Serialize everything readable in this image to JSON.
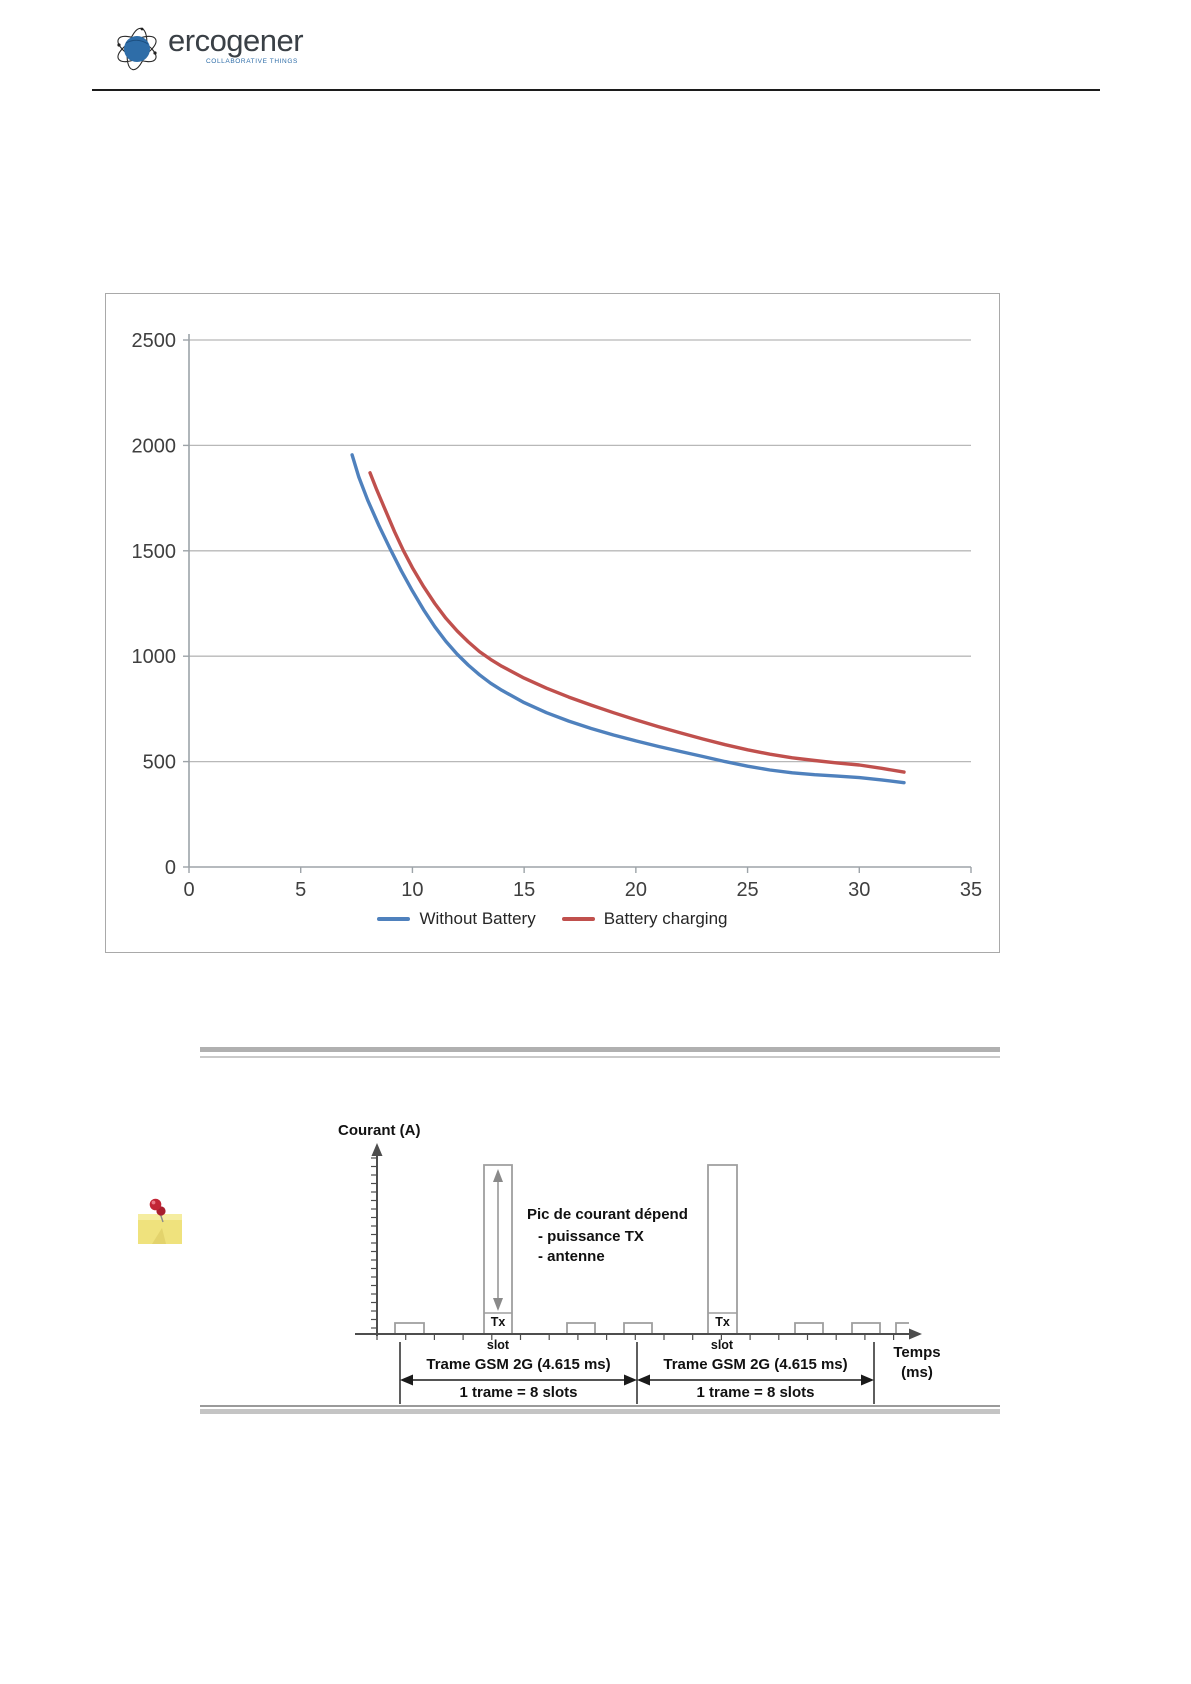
{
  "header": {
    "logo_text": "ercogener",
    "logo_tagline": "COLLABORATIVE THINGS"
  },
  "chart_data": {
    "type": "line",
    "title": "",
    "xlabel": "",
    "ylabel": "",
    "xlim": [
      0,
      35
    ],
    "ylim": [
      0,
      2500
    ],
    "xticks": [
      0,
      5,
      10,
      15,
      20,
      25,
      30,
      35
    ],
    "yticks": [
      0,
      500,
      1000,
      1500,
      2000,
      2500
    ],
    "grid": "horizontal",
    "legend_position": "bottom",
    "series": [
      {
        "name": "Without Battery",
        "color": "#4F81BD",
        "points": [
          [
            7.3,
            1955
          ],
          [
            7.6,
            1850
          ],
          [
            8,
            1740
          ],
          [
            8.5,
            1620
          ],
          [
            9,
            1510
          ],
          [
            9.5,
            1405
          ],
          [
            10,
            1310
          ],
          [
            10.5,
            1220
          ],
          [
            11,
            1140
          ],
          [
            11.5,
            1070
          ],
          [
            12,
            1010
          ],
          [
            12.5,
            958
          ],
          [
            13,
            912
          ],
          [
            13.5,
            872
          ],
          [
            14,
            838
          ],
          [
            15,
            780
          ],
          [
            16,
            732
          ],
          [
            17,
            692
          ],
          [
            18,
            657
          ],
          [
            19,
            626
          ],
          [
            20,
            598
          ],
          [
            21,
            572
          ],
          [
            22,
            548
          ],
          [
            23,
            524
          ],
          [
            24,
            500
          ],
          [
            25,
            478
          ],
          [
            26,
            460
          ],
          [
            27,
            447
          ],
          [
            28,
            438
          ],
          [
            29,
            431
          ],
          [
            30,
            424
          ],
          [
            31,
            413
          ],
          [
            32,
            400
          ]
        ]
      },
      {
        "name": "Battery charging",
        "color": "#C0504D",
        "points": [
          [
            8.1,
            1870
          ],
          [
            8.4,
            1790
          ],
          [
            8.8,
            1690
          ],
          [
            9.2,
            1590
          ],
          [
            9.6,
            1500
          ],
          [
            10,
            1420
          ],
          [
            10.5,
            1330
          ],
          [
            11,
            1250
          ],
          [
            11.5,
            1180
          ],
          [
            12,
            1120
          ],
          [
            12.5,
            1068
          ],
          [
            13,
            1022
          ],
          [
            13.5,
            985
          ],
          [
            14,
            952
          ],
          [
            15,
            896
          ],
          [
            16,
            848
          ],
          [
            17,
            806
          ],
          [
            18,
            768
          ],
          [
            19,
            732
          ],
          [
            20,
            698
          ],
          [
            21,
            666
          ],
          [
            22,
            636
          ],
          [
            23,
            607
          ],
          [
            24,
            580
          ],
          [
            25,
            556
          ],
          [
            26,
            535
          ],
          [
            27,
            518
          ],
          [
            28,
            505
          ],
          [
            29,
            494
          ],
          [
            30,
            484
          ],
          [
            31,
            468
          ],
          [
            32,
            450
          ]
        ]
      }
    ]
  },
  "diagram": {
    "y_axis_label": "Courant (A)",
    "x_axis_label_line1": "Temps",
    "x_axis_label_line2": "(ms)",
    "annotation_line1": "Pic de courant dépend",
    "annotation_line2": "- puissance TX",
    "annotation_line3": "- antenne",
    "tx_label": "Tx",
    "slot_label": "slot",
    "frame1_label_line1": "Trame GSM 2G (4.615 ms)",
    "frame1_label_line2": "1 trame = 8 slots",
    "frame2_label_line1": "Trame GSM 2G (4.615 ms)",
    "frame2_label_line2": "1 trame = 8 slots"
  },
  "icons": {
    "logo_icon": "globe-icon",
    "note_icon": "pinned-sticky-note-icon"
  },
  "colors": {
    "series_blue": "#4F81BD",
    "series_red": "#C0504D",
    "grid_gray": "#b8b8b8",
    "axis_gray": "#9da3a8",
    "rule_gray": "#b0b0b0",
    "header_rule": "#1c1c1c",
    "note_yellow": "#efe27d",
    "pin_red": "#c22536"
  }
}
